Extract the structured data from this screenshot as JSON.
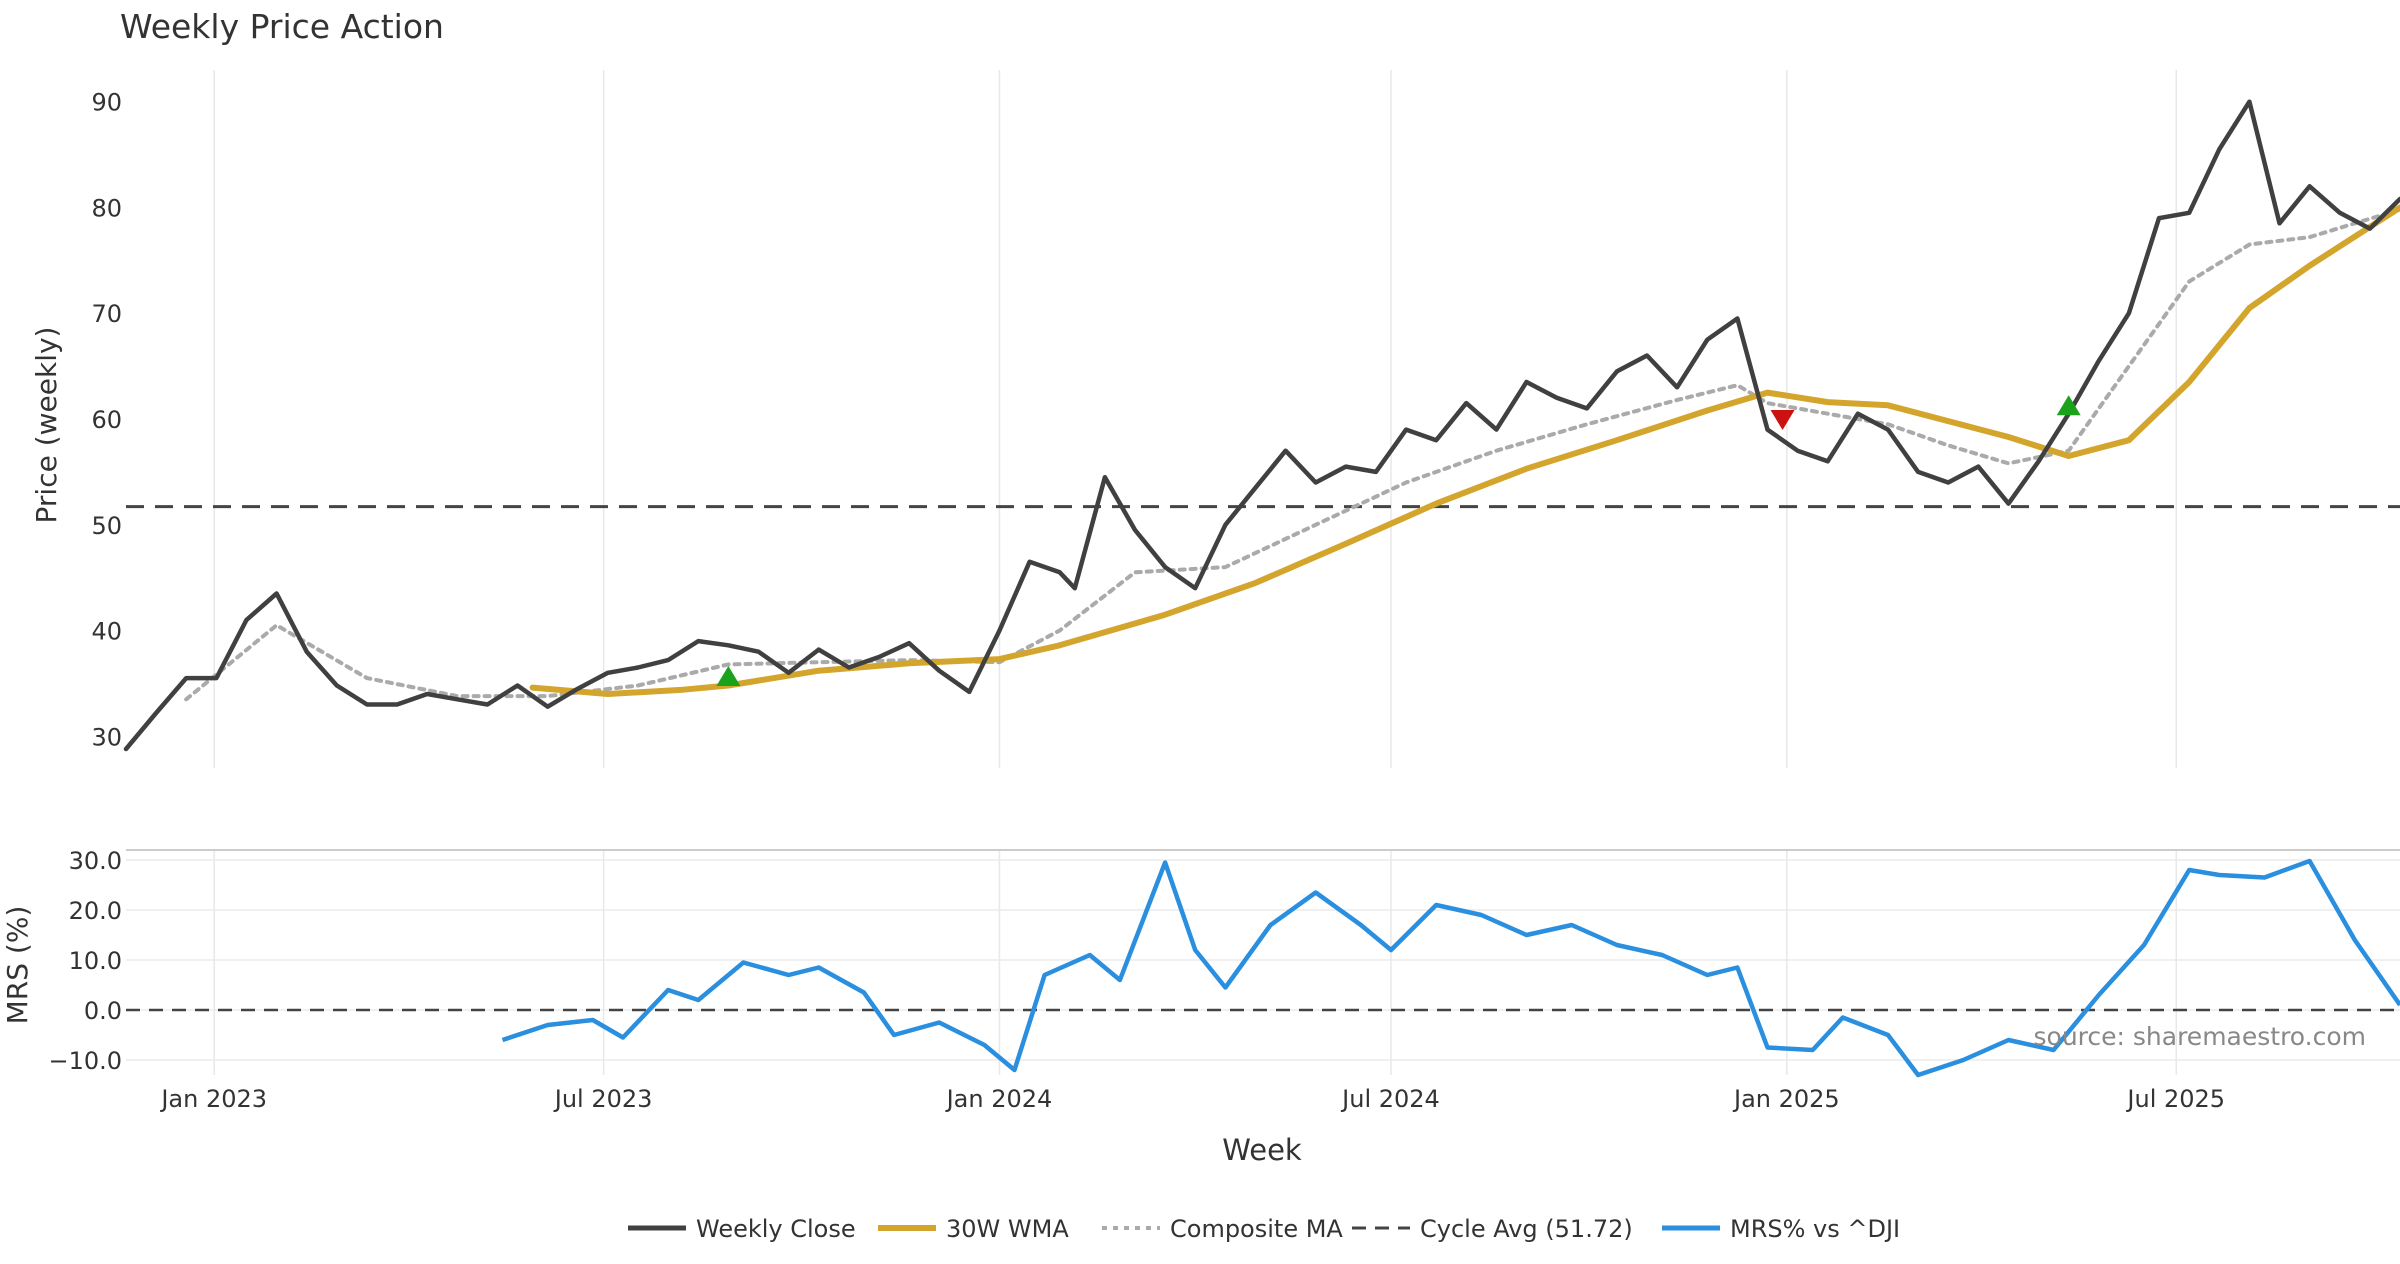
{
  "title": "Weekly Price Action",
  "source": "source: sharemaestro.com",
  "colors": {
    "close": "#404040",
    "wma": "#d4a52c",
    "composite": "#aaaaaa",
    "cycle": "#444444",
    "mrs": "#2b8fe0",
    "buy": "#1aa31a",
    "sell": "#cc1111",
    "grid": "#e8e8e8"
  },
  "legend": [
    "Weekly Close",
    "30W WMA",
    "Composite MA",
    "Cycle Avg (51.72)",
    "MRS% vs ^DJI"
  ],
  "chart_data": {
    "type": "line",
    "xlabel": "Week",
    "x_start": "2022-11-21",
    "x_end": "2025-10-13",
    "x_tick_labels": [
      {
        "date": "2023-01-01",
        "label": "Jan 2023"
      },
      {
        "date": "2023-07-01",
        "label": "Jul 2023"
      },
      {
        "date": "2024-01-01",
        "label": "Jan 2024"
      },
      {
        "date": "2024-07-01",
        "label": "Jul 2024"
      },
      {
        "date": "2025-01-01",
        "label": "Jan 2025"
      },
      {
        "date": "2025-07-01",
        "label": "Jul 2025"
      }
    ],
    "price_panel": {
      "ylabel": "Price (weekly)",
      "ylim": [
        27,
        93
      ],
      "yticks": [
        30,
        40,
        50,
        60,
        70,
        80,
        90
      ],
      "cycle_avg": 51.72,
      "series": [
        {
          "name": "Weekly Close",
          "key": "close",
          "dates": [
            "2022-11-21",
            "2022-12-05",
            "2022-12-19",
            "2023-01-02",
            "2023-01-16",
            "2023-01-30",
            "2023-02-13",
            "2023-02-27",
            "2023-03-13",
            "2023-03-27",
            "2023-04-10",
            "2023-04-24",
            "2023-05-08",
            "2023-05-22",
            "2023-06-05",
            "2023-06-19",
            "2023-07-03",
            "2023-07-17",
            "2023-07-31",
            "2023-08-14",
            "2023-08-28",
            "2023-09-11",
            "2023-09-25",
            "2023-10-09",
            "2023-10-23",
            "2023-11-06",
            "2023-11-20",
            "2023-12-04",
            "2023-12-18",
            "2024-01-01",
            "2024-01-15",
            "2024-01-29",
            "2024-02-05",
            "2024-02-19",
            "2024-03-04",
            "2024-03-18",
            "2024-04-01",
            "2024-04-15",
            "2024-04-29",
            "2024-05-13",
            "2024-05-27",
            "2024-06-10",
            "2024-06-24",
            "2024-07-08",
            "2024-07-22",
            "2024-08-05",
            "2024-08-19",
            "2024-09-02",
            "2024-09-16",
            "2024-09-30",
            "2024-10-14",
            "2024-10-28",
            "2024-11-11",
            "2024-11-25",
            "2024-12-09",
            "2024-12-23",
            "2025-01-06",
            "2025-01-20",
            "2025-02-03",
            "2025-02-17",
            "2025-03-03",
            "2025-03-17",
            "2025-03-31",
            "2025-04-14",
            "2025-04-28",
            "2025-05-12",
            "2025-05-26",
            "2025-06-09",
            "2025-06-23",
            "2025-07-07",
            "2025-07-21",
            "2025-08-04",
            "2025-08-18",
            "2025-09-01",
            "2025-09-15",
            "2025-09-29",
            "2025-10-13"
          ],
          "values": [
            28.8,
            32.2,
            35.5,
            35.5,
            41.0,
            43.5,
            38.0,
            34.8,
            33.0,
            33.0,
            34.0,
            33.5,
            33.0,
            34.8,
            32.8,
            34.5,
            36.0,
            36.5,
            37.2,
            39.0,
            38.6,
            38.0,
            36.0,
            38.2,
            36.5,
            37.5,
            38.8,
            36.2,
            34.2,
            40.0,
            46.5,
            45.5,
            44.0,
            54.5,
            49.5,
            46.0,
            44.0,
            50.0,
            53.5,
            57.0,
            54.0,
            55.5,
            55.0,
            59.0,
            58.0,
            61.5,
            59.0,
            63.5,
            62.0,
            61.0,
            64.5,
            66.0,
            63.0,
            67.5,
            69.5,
            59.0,
            57.0,
            56.0,
            60.5,
            59.0,
            55.0,
            54.0,
            55.5,
            52.0,
            56.0,
            60.5,
            65.5,
            70.0,
            79.0,
            79.5,
            85.5,
            90.0,
            78.5,
            82.0,
            79.5,
            78.0,
            80.8
          ]
        },
        {
          "name": "30W WMA",
          "key": "wma",
          "dates": [
            "2023-05-29",
            "2023-07-03",
            "2023-08-07",
            "2023-08-28",
            "2023-10-09",
            "2023-11-20",
            "2024-01-01",
            "2024-01-29",
            "2024-03-18",
            "2024-04-29",
            "2024-06-10",
            "2024-07-22",
            "2024-09-02",
            "2024-10-14",
            "2024-11-25",
            "2024-12-23",
            "2025-01-20",
            "2025-02-17",
            "2025-03-17",
            "2025-04-14",
            "2025-05-12",
            "2025-06-09",
            "2025-07-07",
            "2025-08-04",
            "2025-09-01",
            "2025-10-13"
          ],
          "values": [
            34.6,
            34.0,
            34.4,
            34.8,
            36.2,
            36.9,
            37.3,
            38.6,
            41.5,
            44.5,
            48.2,
            52.0,
            55.3,
            58.0,
            60.8,
            62.5,
            61.6,
            61.3,
            59.8,
            58.3,
            56.5,
            58.0,
            63.5,
            70.5,
            74.5,
            80.0
          ]
        },
        {
          "name": "Composite MA",
          "key": "composite",
          "dates": [
            "2022-12-19",
            "2023-01-30",
            "2023-03-13",
            "2023-04-24",
            "2023-06-05",
            "2023-07-17",
            "2023-08-28",
            "2023-10-09",
            "2023-11-20",
            "2024-01-01",
            "2024-01-29",
            "2024-03-04",
            "2024-04-15",
            "2024-05-27",
            "2024-07-08",
            "2024-08-19",
            "2024-09-30",
            "2024-11-11",
            "2024-12-09",
            "2024-12-23",
            "2025-01-20",
            "2025-02-17",
            "2025-03-17",
            "2025-04-14",
            "2025-05-12",
            "2025-06-09",
            "2025-07-07",
            "2025-08-04",
            "2025-09-01",
            "2025-10-13"
          ],
          "values": [
            33.5,
            40.5,
            35.5,
            33.8,
            33.8,
            34.8,
            36.8,
            37.0,
            37.2,
            37.0,
            40.0,
            45.5,
            46.0,
            50.0,
            54.0,
            57.0,
            59.5,
            61.8,
            63.2,
            61.5,
            60.5,
            59.5,
            57.5,
            55.8,
            57.0,
            65.0,
            73.0,
            76.5,
            77.2,
            79.8
          ]
        }
      ]
    },
    "signals": [
      {
        "date": "2023-08-28",
        "value": 35.6,
        "type": "buy"
      },
      {
        "date": "2024-12-30",
        "value": 60.0,
        "type": "sell"
      },
      {
        "date": "2025-05-12",
        "value": 61.2,
        "type": "buy"
      }
    ],
    "mrs_panel": {
      "ylabel": "MRS (%)",
      "ylim": [
        -13,
        32
      ],
      "yticks": [
        -10,
        0,
        10,
        20,
        30
      ],
      "ytick_labels": [
        "−10.0",
        "0.0",
        "10.0",
        "20.0",
        "30.0"
      ],
      "series": [
        {
          "name": "MRS% vs ^DJI",
          "key": "mrs",
          "dates": [
            "2023-05-15",
            "2023-06-05",
            "2023-06-26",
            "2023-07-10",
            "2023-07-31",
            "2023-08-14",
            "2023-09-04",
            "2023-09-25",
            "2023-10-09",
            "2023-10-30",
            "2023-11-13",
            "2023-12-04",
            "2023-12-25",
            "2024-01-08",
            "2024-01-22",
            "2024-02-12",
            "2024-02-26",
            "2024-03-18",
            "2024-04-01",
            "2024-04-15",
            "2024-05-06",
            "2024-05-27",
            "2024-06-17",
            "2024-07-01",
            "2024-07-22",
            "2024-08-12",
            "2024-09-02",
            "2024-09-23",
            "2024-10-14",
            "2024-11-04",
            "2024-11-25",
            "2024-12-09",
            "2024-12-23",
            "2025-01-13",
            "2025-01-27",
            "2025-02-17",
            "2025-03-03",
            "2025-03-24",
            "2025-04-14",
            "2025-05-05",
            "2025-05-26",
            "2025-06-16",
            "2025-07-07",
            "2025-07-21",
            "2025-08-11",
            "2025-09-01",
            "2025-09-22",
            "2025-10-13"
          ],
          "values": [
            -6.0,
            -3.0,
            -2.0,
            -5.5,
            4.0,
            2.0,
            9.5,
            7.0,
            8.5,
            3.5,
            -5.0,
            -2.5,
            -7.0,
            -12.0,
            7.0,
            11.0,
            6.0,
            29.5,
            12.0,
            4.5,
            17.0,
            23.5,
            17.0,
            12.0,
            21.0,
            19.0,
            15.0,
            17.0,
            13.0,
            11.0,
            7.0,
            8.5,
            -7.5,
            -8.0,
            -1.5,
            -5.0,
            -13.0,
            -10.0,
            -6.0,
            -8.0,
            3.0,
            13.0,
            28.0,
            27.0,
            26.5,
            29.8,
            14.0,
            1.0
          ]
        }
      ]
    }
  }
}
